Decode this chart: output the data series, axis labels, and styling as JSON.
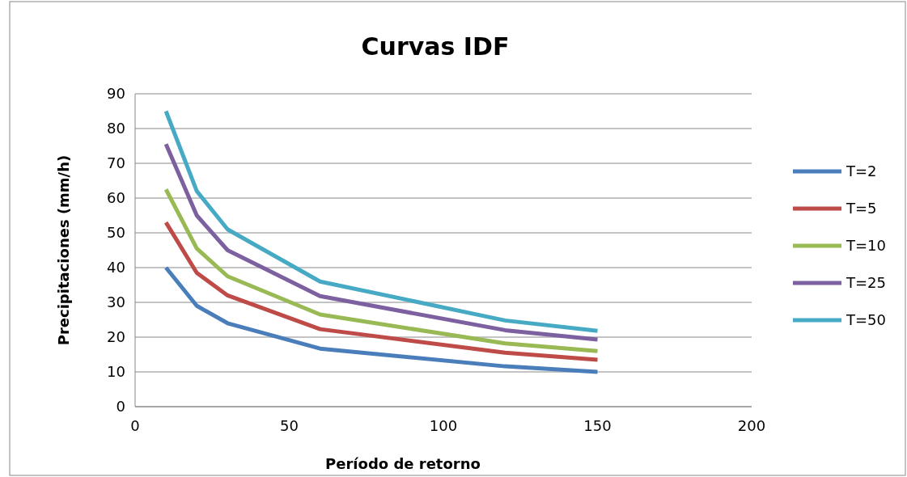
{
  "chart_data": {
    "type": "line",
    "title": "Curvas IDF",
    "xlabel": "Período de retorno",
    "ylabel": "Precipitaciones (mm/h)",
    "xlim": [
      0,
      200
    ],
    "xticks": [
      0,
      50,
      100,
      150,
      200
    ],
    "ylim": [
      0,
      90
    ],
    "yticks": [
      0,
      10,
      20,
      30,
      40,
      50,
      60,
      70,
      80,
      90
    ],
    "grid": "y",
    "legend": "right",
    "marker": "none",
    "line_style": "solid",
    "x": [
      10,
      20,
      30,
      60,
      120,
      150
    ],
    "series": [
      {
        "name": "T=2",
        "color": "#4a7ebb",
        "values": [
          40,
          29,
          24,
          16.7,
          11.6,
          10
        ]
      },
      {
        "name": "T=5",
        "color": "#be4b48",
        "values": [
          53,
          38.5,
          32,
          22.3,
          15.5,
          13.5
        ]
      },
      {
        "name": "T=10",
        "color": "#98b954",
        "values": [
          62.5,
          45.5,
          37.5,
          26.5,
          18.2,
          16
        ]
      },
      {
        "name": "T=25",
        "color": "#7d60a0",
        "values": [
          75.5,
          55,
          45,
          31.8,
          22,
          19.3
        ]
      },
      {
        "name": "T=50",
        "color": "#46aac5",
        "values": [
          85,
          62,
          51,
          36,
          24.8,
          21.8
        ]
      }
    ]
  }
}
